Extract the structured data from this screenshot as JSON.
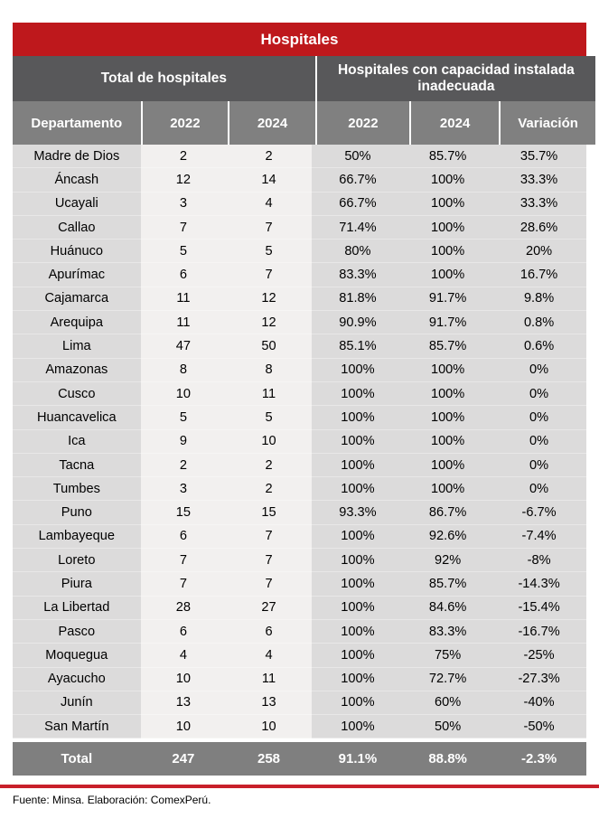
{
  "title": "Hospitales",
  "chart_data": {
    "type": "table",
    "title": "Hospitales",
    "column_groups": [
      {
        "label": "Total de hospitales",
        "span": 3
      },
      {
        "label": "Hospitales con capacidad instalada inadecuada",
        "span": 3
      }
    ],
    "columns": [
      "Departamento",
      "2022",
      "2024",
      "2022",
      "2024",
      "Variación"
    ],
    "rows": [
      [
        "Madre de Dios",
        "2",
        "2",
        "50%",
        "85.7%",
        "35.7%"
      ],
      [
        "Áncash",
        "12",
        "14",
        "66.7%",
        "100%",
        "33.3%"
      ],
      [
        "Ucayali",
        "3",
        "4",
        "66.7%",
        "100%",
        "33.3%"
      ],
      [
        "Callao",
        "7",
        "7",
        "71.4%",
        "100%",
        "28.6%"
      ],
      [
        "Huánuco",
        "5",
        "5",
        "80%",
        "100%",
        "20%"
      ],
      [
        "Apurímac",
        "6",
        "7",
        "83.3%",
        "100%",
        "16.7%"
      ],
      [
        "Cajamarca",
        "11",
        "12",
        "81.8%",
        "91.7%",
        "9.8%"
      ],
      [
        "Arequipa",
        "11",
        "12",
        "90.9%",
        "91.7%",
        "0.8%"
      ],
      [
        "Lima",
        "47",
        "50",
        "85.1%",
        "85.7%",
        "0.6%"
      ],
      [
        "Amazonas",
        "8",
        "8",
        "100%",
        "100%",
        "0%"
      ],
      [
        "Cusco",
        "10",
        "11",
        "100%",
        "100%",
        "0%"
      ],
      [
        "Huancavelica",
        "5",
        "5",
        "100%",
        "100%",
        "0%"
      ],
      [
        "Ica",
        "9",
        "10",
        "100%",
        "100%",
        "0%"
      ],
      [
        "Tacna",
        "2",
        "2",
        "100%",
        "100%",
        "0%"
      ],
      [
        "Tumbes",
        "3",
        "2",
        "100%",
        "100%",
        "0%"
      ],
      [
        "Puno",
        "15",
        "15",
        "93.3%",
        "86.7%",
        "-6.7%"
      ],
      [
        "Lambayeque",
        "6",
        "7",
        "100%",
        "92.6%",
        "-7.4%"
      ],
      [
        "Loreto",
        "7",
        "7",
        "100%",
        "92%",
        "-8%"
      ],
      [
        "Piura",
        "7",
        "7",
        "100%",
        "85.7%",
        "-14.3%"
      ],
      [
        "La Libertad",
        "28",
        "27",
        "100%",
        "84.6%",
        "-15.4%"
      ],
      [
        "Pasco",
        "6",
        "6",
        "100%",
        "83.3%",
        "-16.7%"
      ],
      [
        "Moquegua",
        "4",
        "4",
        "100%",
        "75%",
        "-25%"
      ],
      [
        "Ayacucho",
        "10",
        "11",
        "100%",
        "72.7%",
        "-27.3%"
      ],
      [
        "Junín",
        "13",
        "13",
        "100%",
        "60%",
        "-40%"
      ],
      [
        "San Martín",
        "10",
        "10",
        "100%",
        "50%",
        "-50%"
      ]
    ],
    "total_row": [
      "Total",
      "247",
      "258",
      "91.1%",
      "88.8%",
      "-2.3%"
    ]
  },
  "footer": {
    "source": "Fuente: Minsa. Elaboración: ComexPerú."
  },
  "colors": {
    "accent_red": "#be181c",
    "rule_red": "#c8202a",
    "group_header_bg": "#58585a",
    "column_header_bg": "#808080",
    "body_gray": "#dcdbdb",
    "body_light": "#f2f0ef",
    "total_bg": "#7f7f7f"
  }
}
